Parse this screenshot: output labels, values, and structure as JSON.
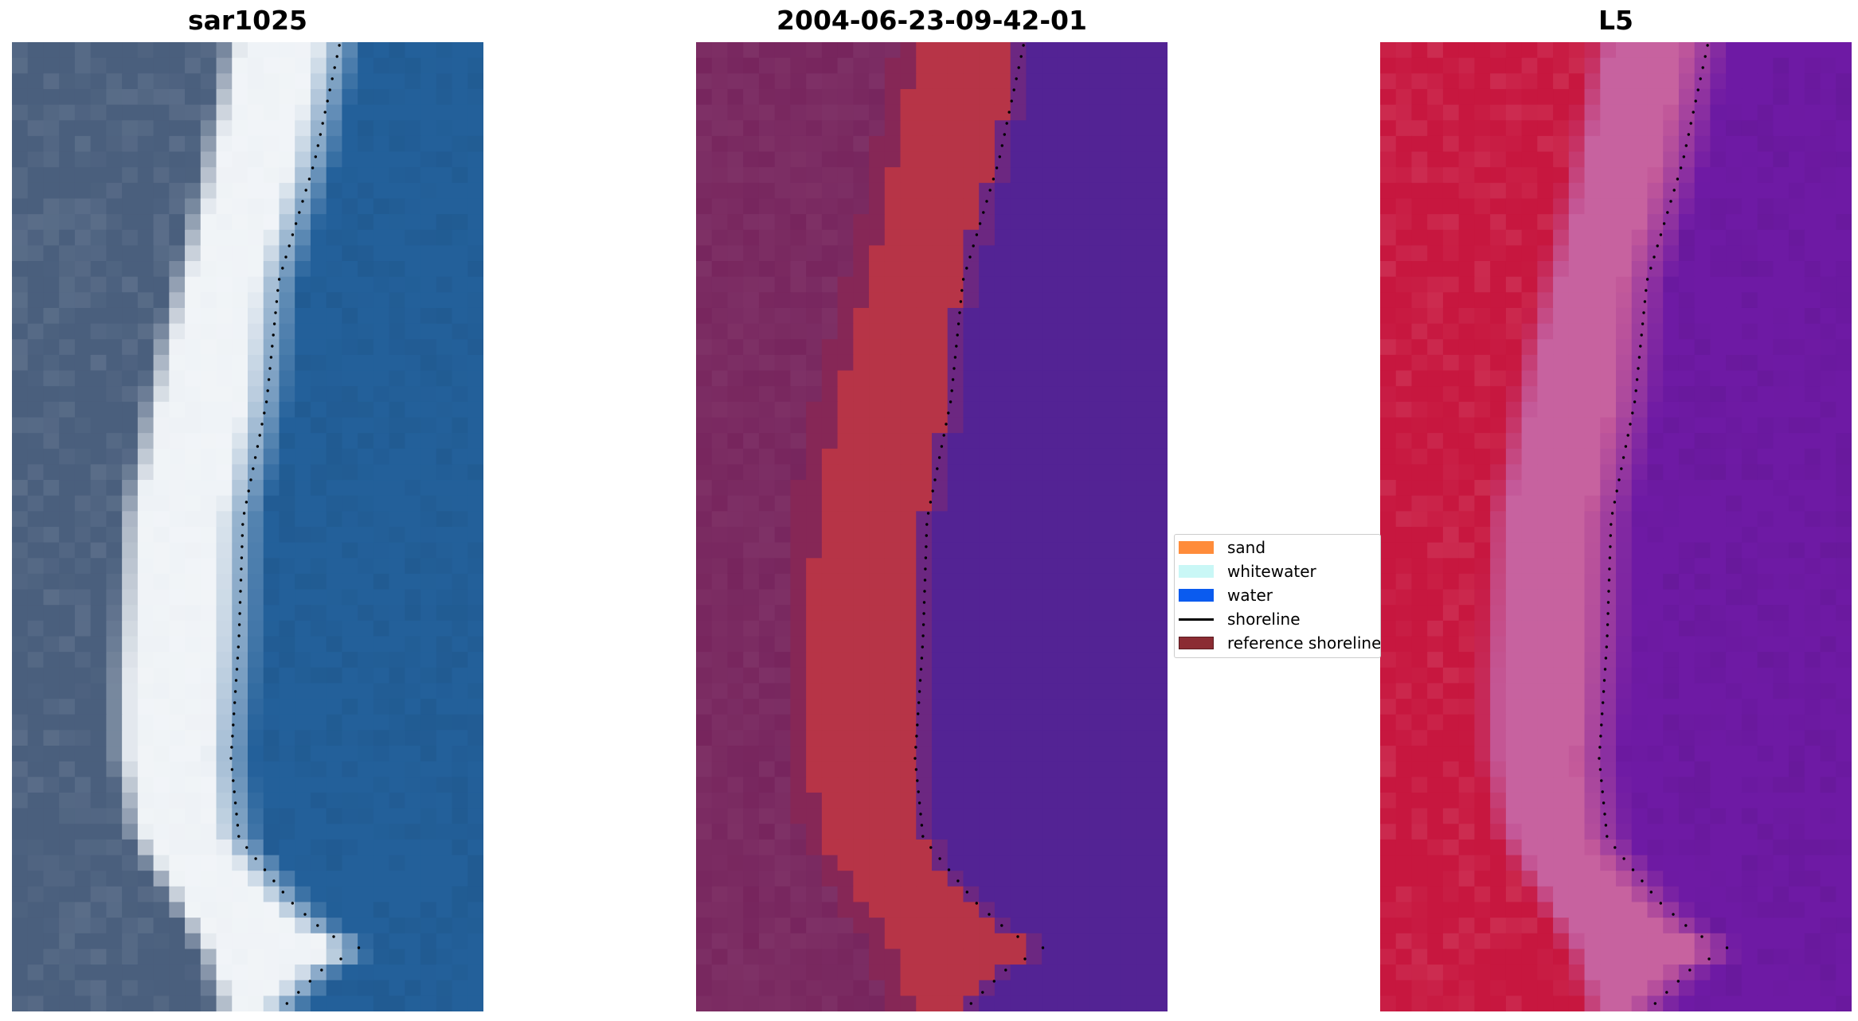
{
  "panels": [
    {
      "title": "sar1025",
      "kind": "rgb"
    },
    {
      "title": "2004-06-23-09-42-01",
      "kind": "classified"
    },
    {
      "title": "L5",
      "kind": "mndwi"
    }
  ],
  "legend": {
    "items": [
      {
        "label": "sand",
        "color": "#ff8c3a",
        "type": "patch"
      },
      {
        "label": "whitewater",
        "color": "#c9f7f6",
        "type": "patch"
      },
      {
        "label": "water",
        "color": "#0a5bef",
        "type": "patch"
      },
      {
        "label": "shoreline",
        "color": "#000000",
        "type": "line"
      },
      {
        "label": "reference shoreline",
        "color": "#8b2c33",
        "type": "patch"
      }
    ]
  },
  "colors": {
    "rgb_land": "#4a5f7d",
    "rgb_sand": "#eef2f6",
    "rgb_water": "#23609a",
    "class_land": "#75225b",
    "class_sand": "#b73447",
    "class_water": "#532394",
    "index_land": "#c7173f",
    "index_sand": "#c45a9a",
    "index_water": "#6e1aa4"
  }
}
